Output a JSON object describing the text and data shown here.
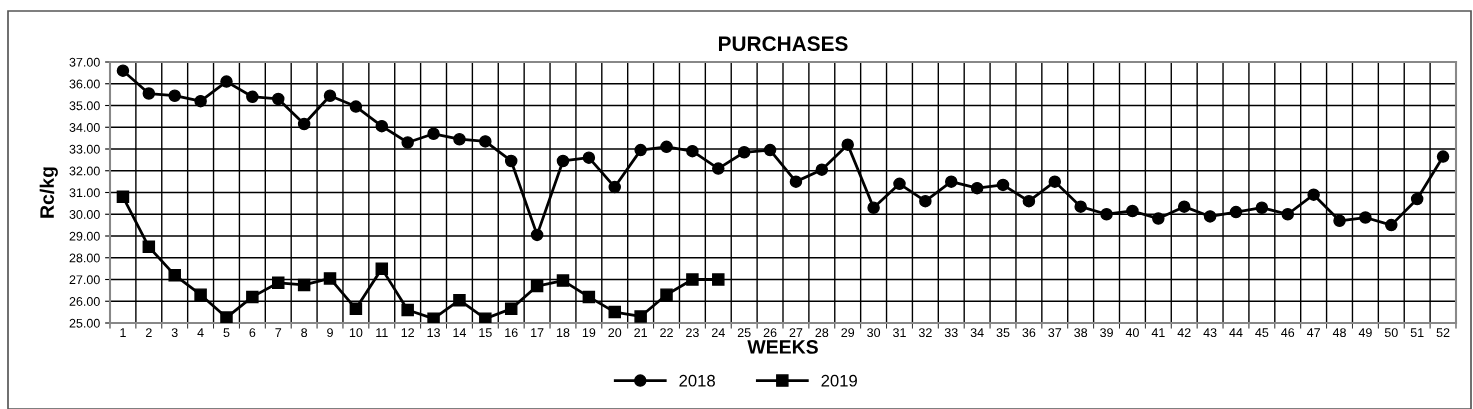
{
  "chart_data": {
    "type": "line",
    "title": "PURCHASES",
    "xlabel": "WEEKS",
    "ylabel": "Rc/kg",
    "categories": [
      "1",
      "2",
      "3",
      "4",
      "5",
      "6",
      "7",
      "8",
      "9",
      "10",
      "11",
      "12",
      "13",
      "14",
      "15",
      "16",
      "17",
      "18",
      "19",
      "20",
      "21",
      "22",
      "23",
      "24",
      "25",
      "26",
      "27",
      "28",
      "29",
      "30",
      "31",
      "32",
      "33",
      "34",
      "35",
      "36",
      "37",
      "38",
      "39",
      "40",
      "41",
      "42",
      "43",
      "44",
      "45",
      "46",
      "47",
      "48",
      "49",
      "50",
      "51",
      "52"
    ],
    "series": [
      {
        "name": "2018",
        "color": "#000000",
        "marker": "circle",
        "values": [
          36.6,
          35.55,
          35.45,
          35.2,
          36.1,
          35.4,
          35.3,
          34.15,
          35.45,
          34.95,
          34.05,
          33.3,
          33.7,
          33.45,
          33.35,
          32.45,
          29.05,
          32.45,
          32.6,
          31.25,
          32.95,
          33.1,
          32.9,
          32.1,
          32.85,
          32.95,
          31.5,
          32.05,
          33.2,
          30.3,
          31.4,
          30.6,
          31.5,
          31.2,
          31.35,
          30.6,
          31.5,
          30.35,
          30.0,
          30.15,
          29.8,
          30.35,
          29.9,
          30.1,
          30.3,
          30.0,
          30.9,
          29.7,
          29.85,
          29.5,
          30.7,
          32.65
        ]
      },
      {
        "name": "2019",
        "color": "#000000",
        "marker": "square",
        "values": [
          30.8,
          28.5,
          27.2,
          26.3,
          25.25,
          26.2,
          26.85,
          26.75,
          27.05,
          25.65,
          27.5,
          25.6,
          25.2,
          26.05,
          25.2,
          25.65,
          26.7,
          26.95,
          26.2,
          25.5,
          25.3,
          26.3,
          27.0,
          27.0,
          null,
          null,
          null,
          null,
          null,
          null,
          null,
          null,
          null,
          null,
          null,
          null,
          null,
          null,
          null,
          null,
          null,
          null,
          null,
          null,
          null,
          null,
          null,
          null,
          null,
          null,
          null,
          null
        ]
      }
    ],
    "ylim": [
      25,
      37
    ],
    "yticks": [
      {
        "value": 25,
        "label": "25.00"
      },
      {
        "value": 26,
        "label": "26.00"
      },
      {
        "value": 27,
        "label": "27.00"
      },
      {
        "value": 28,
        "label": "28.00"
      },
      {
        "value": 29,
        "label": "29.00"
      },
      {
        "value": 30,
        "label": "30.00"
      },
      {
        "value": 31,
        "label": "31.00"
      },
      {
        "value": 32,
        "label": "32.00"
      },
      {
        "value": 33,
        "label": "33.00"
      },
      {
        "value": 34,
        "label": "34.00"
      },
      {
        "value": 35,
        "label": "35.00"
      },
      {
        "value": 36,
        "label": "36.00"
      },
      {
        "value": 37,
        "label": "37.00"
      }
    ],
    "grid": true,
    "legend": "bottom",
    "line_style": "solid"
  }
}
